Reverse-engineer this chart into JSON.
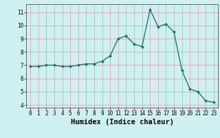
{
  "x": [
    0,
    1,
    2,
    3,
    4,
    5,
    6,
    7,
    8,
    9,
    10,
    11,
    12,
    13,
    14,
    15,
    16,
    17,
    18,
    19,
    20,
    21,
    22,
    23
  ],
  "y": [
    6.9,
    6.9,
    7.0,
    7.0,
    6.9,
    6.9,
    7.0,
    7.1,
    7.1,
    7.3,
    7.7,
    9.0,
    9.2,
    8.6,
    8.4,
    11.2,
    9.9,
    10.1,
    9.5,
    6.6,
    5.2,
    5.0,
    4.3,
    4.2
  ],
  "line_color": "#1a7a6e",
  "marker": "D",
  "marker_size": 2.0,
  "bg_color": "#cff0f0",
  "grid_color": "#b8d8d8",
  "xlabel": "Humidex (Indice chaleur)",
  "xlim": [
    -0.5,
    23.5
  ],
  "ylim": [
    3.8,
    11.6
  ],
  "yticks": [
    4,
    5,
    6,
    7,
    8,
    9,
    10,
    11
  ],
  "xticks": [
    0,
    1,
    2,
    3,
    4,
    5,
    6,
    7,
    8,
    9,
    10,
    11,
    12,
    13,
    14,
    15,
    16,
    17,
    18,
    19,
    20,
    21,
    22,
    23
  ],
  "tick_fontsize": 5.5,
  "label_fontsize": 7.5,
  "line_width": 1.0,
  "spine_color": "#555555"
}
